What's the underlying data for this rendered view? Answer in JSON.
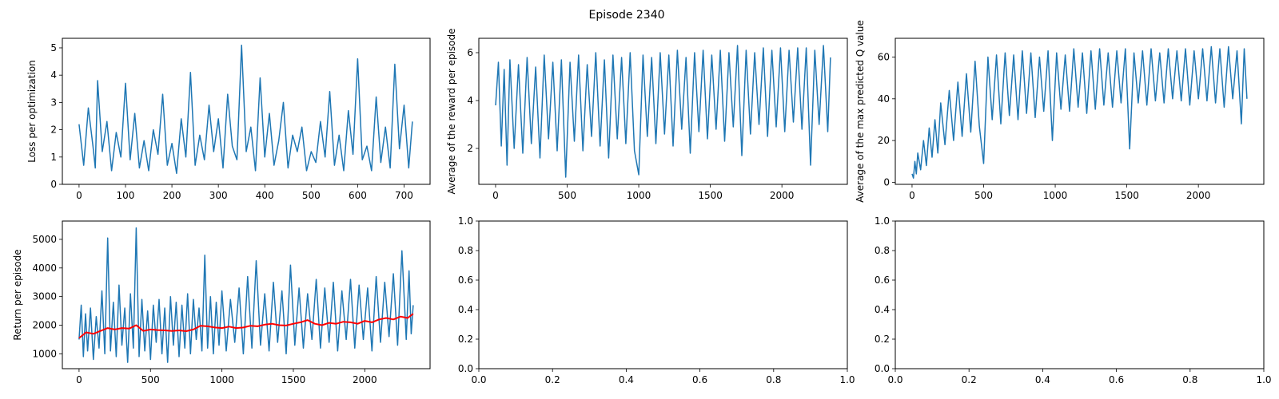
{
  "figure": {
    "title": "Episode 2340"
  },
  "chart_data": [
    {
      "id": "loss",
      "type": "line",
      "title": "",
      "xlabel": "",
      "ylabel": "Loss per optimization",
      "xlim": [
        -36,
        756
      ],
      "ylim": [
        0,
        5.35
      ],
      "xticks": [
        0,
        100,
        200,
        300,
        400,
        500,
        600,
        700
      ],
      "yticks": [
        0,
        1,
        2,
        3,
        4,
        5
      ],
      "series": [
        {
          "color": "#1f77b4",
          "x": [
            0,
            10,
            20,
            30,
            35,
            40,
            50,
            60,
            70,
            80,
            90,
            100,
            110,
            120,
            130,
            140,
            150,
            160,
            170,
            180,
            190,
            200,
            210,
            220,
            230,
            240,
            250,
            260,
            270,
            280,
            290,
            300,
            310,
            320,
            330,
            340,
            350,
            360,
            370,
            380,
            390,
            400,
            410,
            420,
            430,
            440,
            450,
            460,
            470,
            480,
            490,
            500,
            510,
            520,
            530,
            540,
            550,
            560,
            570,
            580,
            590,
            600,
            610,
            620,
            630,
            640,
            650,
            660,
            670,
            680,
            690,
            700,
            710,
            718
          ],
          "y": [
            2.2,
            0.7,
            2.8,
            1.4,
            0.6,
            3.8,
            1.2,
            2.3,
            0.5,
            1.9,
            1.0,
            3.7,
            0.9,
            2.6,
            0.6,
            1.6,
            0.5,
            2.0,
            1.1,
            3.3,
            0.7,
            1.5,
            0.4,
            2.4,
            1.0,
            4.1,
            0.7,
            1.8,
            0.9,
            2.9,
            1.2,
            2.4,
            0.6,
            3.3,
            1.4,
            0.9,
            5.1,
            1.2,
            2.1,
            0.5,
            3.9,
            1.0,
            2.6,
            0.7,
            1.6,
            3.0,
            0.6,
            1.8,
            1.2,
            2.1,
            0.5,
            1.2,
            0.8,
            2.3,
            1.0,
            3.4,
            0.7,
            1.8,
            0.5,
            2.7,
            1.1,
            4.6,
            0.9,
            1.4,
            0.5,
            3.2,
            0.8,
            2.1,
            0.6,
            4.4,
            1.3,
            2.9,
            0.6,
            2.3
          ]
        }
      ]
    },
    {
      "id": "avg-reward",
      "type": "line",
      "title": "",
      "xlabel": "",
      "ylabel": "Average of the reward per episode",
      "xlim": [
        -117,
        2457
      ],
      "ylim": [
        0.5,
        6.6
      ],
      "xticks": [
        0,
        500,
        1000,
        1500,
        2000
      ],
      "yticks": [
        2,
        4,
        6
      ],
      "series": [
        {
          "color": "#1f77b4",
          "x": [
            0,
            20,
            40,
            60,
            80,
            100,
            130,
            160,
            190,
            220,
            250,
            280,
            310,
            340,
            370,
            400,
            430,
            460,
            490,
            520,
            550,
            580,
            610,
            640,
            670,
            700,
            730,
            760,
            790,
            820,
            850,
            880,
            910,
            940,
            970,
            1000,
            1030,
            1060,
            1090,
            1120,
            1150,
            1180,
            1210,
            1240,
            1270,
            1300,
            1330,
            1360,
            1390,
            1420,
            1450,
            1480,
            1510,
            1540,
            1570,
            1600,
            1630,
            1660,
            1690,
            1720,
            1750,
            1780,
            1810,
            1840,
            1870,
            1900,
            1930,
            1960,
            1990,
            2020,
            2050,
            2080,
            2110,
            2140,
            2170,
            2200,
            2230,
            2260,
            2290,
            2320,
            2339
          ],
          "y": [
            3.8,
            5.6,
            2.1,
            5.3,
            1.3,
            5.7,
            2.0,
            5.5,
            1.8,
            5.8,
            2.2,
            5.4,
            1.6,
            5.9,
            2.4,
            5.6,
            1.9,
            5.7,
            0.8,
            5.6,
            2.3,
            5.9,
            1.9,
            5.5,
            2.5,
            6.0,
            2.1,
            5.7,
            1.6,
            5.9,
            2.4,
            5.8,
            2.2,
            6.0,
            1.9,
            0.9,
            5.9,
            2.5,
            5.8,
            2.2,
            6.0,
            2.6,
            5.9,
            2.1,
            6.1,
            2.8,
            5.8,
            1.8,
            6.0,
            2.7,
            6.1,
            2.4,
            5.9,
            2.8,
            6.1,
            2.3,
            6.0,
            2.9,
            6.3,
            1.7,
            6.1,
            2.6,
            6.0,
            3.0,
            6.2,
            2.5,
            6.1,
            2.9,
            6.2,
            2.7,
            6.1,
            3.1,
            6.2,
            2.8,
            6.2,
            1.3,
            6.1,
            3.0,
            6.3,
            2.7,
            5.8
          ]
        }
      ]
    },
    {
      "id": "max-q",
      "type": "line",
      "title": "",
      "xlabel": "",
      "ylabel": "Average of the max predicted Q value",
      "xlim": [
        -117,
        2457
      ],
      "ylim": [
        -1,
        69
      ],
      "xticks": [
        0,
        500,
        1000,
        1500,
        2000
      ],
      "yticks": [
        0,
        20,
        40,
        60
      ],
      "series": [
        {
          "color": "#1f77b4",
          "x": [
            0,
            10,
            20,
            30,
            40,
            60,
            80,
            100,
            120,
            140,
            160,
            180,
            200,
            230,
            260,
            290,
            320,
            350,
            380,
            410,
            440,
            470,
            500,
            530,
            560,
            590,
            620,
            650,
            680,
            710,
            740,
            770,
            800,
            830,
            860,
            890,
            920,
            950,
            980,
            1010,
            1040,
            1070,
            1100,
            1130,
            1160,
            1190,
            1220,
            1250,
            1280,
            1310,
            1340,
            1370,
            1400,
            1430,
            1460,
            1490,
            1520,
            1550,
            1580,
            1610,
            1640,
            1670,
            1700,
            1730,
            1760,
            1790,
            1820,
            1850,
            1880,
            1910,
            1940,
            1970,
            2000,
            2030,
            2060,
            2090,
            2120,
            2150,
            2180,
            2210,
            2240,
            2270,
            2300,
            2320,
            2339
          ],
          "y": [
            4,
            2,
            10,
            4,
            14,
            6,
            20,
            8,
            26,
            12,
            30,
            14,
            38,
            18,
            44,
            20,
            48,
            22,
            52,
            24,
            58,
            27,
            9,
            60,
            30,
            61,
            28,
            62,
            32,
            61,
            30,
            63,
            33,
            62,
            31,
            60,
            34,
            63,
            20,
            62,
            35,
            61,
            34,
            64,
            36,
            62,
            33,
            63,
            35,
            64,
            37,
            62,
            36,
            63,
            38,
            64,
            16,
            62,
            38,
            63,
            37,
            64,
            39,
            62,
            38,
            64,
            40,
            63,
            39,
            64,
            37,
            63,
            40,
            64,
            39,
            65,
            38,
            64,
            36,
            65,
            40,
            63,
            28,
            64,
            40
          ]
        }
      ]
    },
    {
      "id": "return",
      "type": "line",
      "title": "",
      "xlabel": "",
      "ylabel": "Return per episode",
      "xlim": [
        -117,
        2457
      ],
      "ylim": [
        480,
        5640
      ],
      "xticks": [
        0,
        500,
        1000,
        1500,
        2000
      ],
      "yticks": [
        1000,
        2000,
        3000,
        4000,
        5000
      ],
      "series": [
        {
          "color": "#1f77b4",
          "x": [
            0,
            15,
            30,
            45,
            60,
            80,
            100,
            120,
            140,
            160,
            180,
            200,
            220,
            240,
            260,
            280,
            300,
            320,
            340,
            360,
            380,
            400,
            420,
            440,
            460,
            480,
            500,
            520,
            540,
            560,
            580,
            600,
            620,
            640,
            660,
            680,
            700,
            720,
            740,
            760,
            780,
            800,
            820,
            840,
            860,
            880,
            900,
            920,
            940,
            960,
            980,
            1000,
            1030,
            1060,
            1090,
            1120,
            1150,
            1180,
            1210,
            1240,
            1270,
            1300,
            1330,
            1360,
            1390,
            1420,
            1450,
            1480,
            1510,
            1540,
            1570,
            1600,
            1630,
            1660,
            1690,
            1720,
            1750,
            1780,
            1810,
            1840,
            1870,
            1900,
            1930,
            1960,
            1990,
            2020,
            2050,
            2080,
            2110,
            2140,
            2170,
            2200,
            2230,
            2260,
            2290,
            2310,
            2325,
            2339
          ],
          "y": [
            1500,
            2700,
            900,
            2400,
            1100,
            2600,
            800,
            2300,
            1200,
            3200,
            1000,
            5050,
            1100,
            2800,
            900,
            3400,
            1300,
            2600,
            700,
            3100,
            1200,
            5400,
            900,
            2900,
            1100,
            2500,
            800,
            2700,
            1400,
            2900,
            1000,
            2600,
            700,
            3000,
            1300,
            2800,
            900,
            2700,
            1200,
            3100,
            1000,
            2900,
            1500,
            2600,
            1100,
            4450,
            1200,
            3000,
            1000,
            2800,
            1300,
            3200,
            1100,
            2900,
            1400,
            3300,
            1000,
            3700,
            1200,
            4250,
            1300,
            3100,
            1100,
            3500,
            1400,
            3200,
            1000,
            4100,
            1300,
            3300,
            1200,
            3100,
            1500,
            3600,
            1200,
            3300,
            1400,
            3500,
            1100,
            3200,
            1500,
            3600,
            1200,
            3400,
            1500,
            3300,
            1100,
            3700,
            1400,
            3500,
            1600,
            3800,
            1300,
            4600,
            1500,
            3900,
            1700,
            2700
          ]
        },
        {
          "color": "#ff0000",
          "x": [
            0,
            50,
            100,
            150,
            200,
            250,
            300,
            350,
            400,
            450,
            500,
            550,
            600,
            650,
            700,
            750,
            800,
            850,
            900,
            950,
            1000,
            1050,
            1100,
            1150,
            1200,
            1250,
            1300,
            1350,
            1400,
            1450,
            1500,
            1550,
            1600,
            1650,
            1700,
            1750,
            1800,
            1850,
            1900,
            1950,
            2000,
            2050,
            2100,
            2150,
            2200,
            2250,
            2300,
            2339
          ],
          "y": [
            1550,
            1750,
            1700,
            1800,
            1900,
            1850,
            1900,
            1880,
            2000,
            1800,
            1850,
            1830,
            1820,
            1800,
            1820,
            1790,
            1850,
            1980,
            1960,
            1920,
            1900,
            1950,
            1900,
            1920,
            1980,
            1960,
            2020,
            2050,
            2000,
            1990,
            2050,
            2100,
            2180,
            2050,
            2000,
            2080,
            2050,
            2120,
            2100,
            2050,
            2150,
            2100,
            2200,
            2250,
            2200,
            2300,
            2250,
            2400
          ]
        }
      ]
    },
    {
      "id": "empty-1",
      "type": "line",
      "title": "",
      "xlabel": "",
      "ylabel": "",
      "xlim": [
        0,
        1
      ],
      "ylim": [
        0,
        1
      ],
      "xticks": [
        0.0,
        0.2,
        0.4,
        0.6,
        0.8,
        1.0
      ],
      "yticks": [
        0.0,
        0.2,
        0.4,
        0.6,
        0.8,
        1.0
      ],
      "series": []
    },
    {
      "id": "empty-2",
      "type": "line",
      "title": "",
      "xlabel": "",
      "ylabel": "",
      "xlim": [
        0,
        1
      ],
      "ylim": [
        0,
        1
      ],
      "xticks": [
        0.0,
        0.2,
        0.4,
        0.6,
        0.8,
        1.0
      ],
      "yticks": [
        0.0,
        0.2,
        0.4,
        0.6,
        0.8,
        1.0
      ],
      "series": []
    }
  ]
}
